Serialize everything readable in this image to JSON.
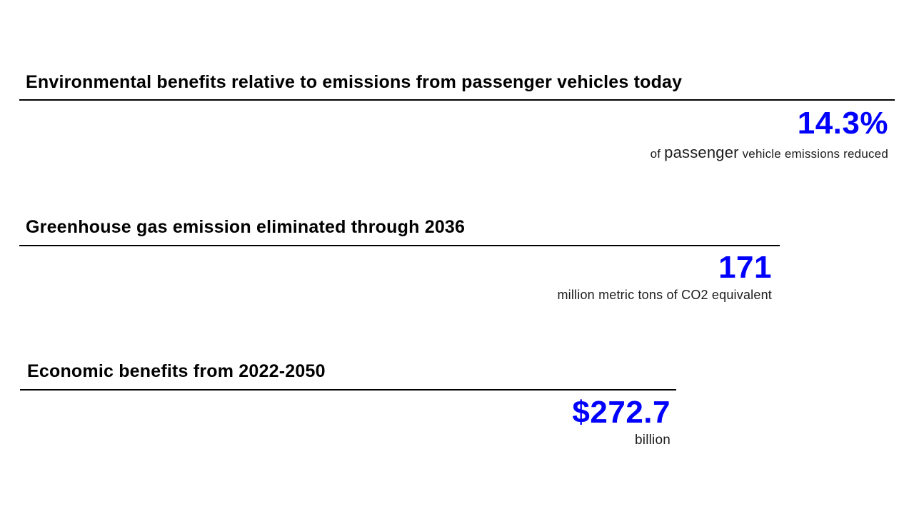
{
  "theme": {
    "background": "#ffffff",
    "accent_color": "#0000ff",
    "text_color": "#000000"
  },
  "sections": [
    {
      "heading": "Environmental benefits relative to emissions from passenger vehicles today",
      "stat_value": "14.3%",
      "caption_prefix": "of ",
      "caption_emphasis": "passenger",
      "caption_suffix": " vehicle emissions reduced"
    },
    {
      "heading": "Greenhouse gas emission eliminated through 2036",
      "stat_value": "171",
      "caption": "million metric tons of CO2 equivalent"
    },
    {
      "heading": "Economic benefits from 2022-2050",
      "stat_value": "$272.7",
      "caption": "billion"
    }
  ]
}
